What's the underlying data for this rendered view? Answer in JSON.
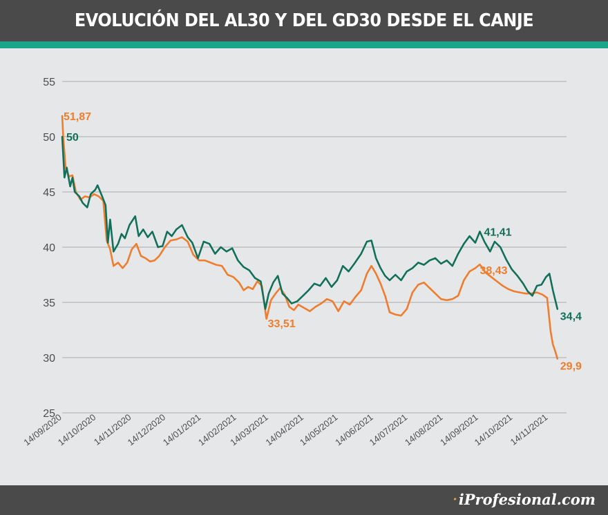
{
  "title": "EVOLUCIÓN DEL AL30 Y DEL GD30 DESDE EL CANJE",
  "brand": "iProfesional.com",
  "colors": {
    "header_bg": "#4a4a4a",
    "stripe": "#1aa58a",
    "background": "#e6e7e8",
    "gd30": "#12705a",
    "al30": "#ef7d2d",
    "grid": "#a9abad",
    "axis_text": "#4d4d4d"
  },
  "chart_data": {
    "type": "line",
    "ylim": [
      25,
      55
    ],
    "yticks": [
      25,
      30,
      35,
      40,
      45,
      50,
      55
    ],
    "grid": true,
    "x_range": [
      "2020-09-14",
      "2021-11-30"
    ],
    "x_tick_labels": [
      "14/09/2020",
      "14/10/2020",
      "14/11/2020",
      "14/12/2020",
      "14/01/2021",
      "14/02/2021",
      "14/03/2021",
      "14/04/2021",
      "14/05/2021",
      "14/06/2021",
      "14/07/2021",
      "14/08/2021",
      "14/09/2021",
      "14/10/2021",
      "14/11/2021"
    ],
    "series": [
      {
        "key": "gd30",
        "color": "#12705a",
        "points": [
          [
            "2020-09-14",
            50.0
          ],
          [
            "2020-09-16",
            46.3
          ],
          [
            "2020-09-18",
            47.2
          ],
          [
            "2020-09-21",
            45.5
          ],
          [
            "2020-09-23",
            46.3
          ],
          [
            "2020-09-25",
            45.0
          ],
          [
            "2020-09-29",
            44.6
          ],
          [
            "2020-10-02",
            44.0
          ],
          [
            "2020-10-06",
            43.6
          ],
          [
            "2020-10-09",
            44.8
          ],
          [
            "2020-10-13",
            45.2
          ],
          [
            "2020-10-15",
            45.6
          ],
          [
            "2020-10-19",
            44.6
          ],
          [
            "2020-10-22",
            43.8
          ],
          [
            "2020-10-24",
            40.4
          ],
          [
            "2020-10-26",
            42.5
          ],
          [
            "2020-10-29",
            39.6
          ],
          [
            "2020-11-02",
            40.3
          ],
          [
            "2020-11-05",
            41.2
          ],
          [
            "2020-11-08",
            40.8
          ],
          [
            "2020-11-12",
            42.0
          ],
          [
            "2020-11-17",
            42.8
          ],
          [
            "2020-11-20",
            41.0
          ],
          [
            "2020-11-24",
            41.6
          ],
          [
            "2020-11-28",
            40.9
          ],
          [
            "2020-12-02",
            41.4
          ],
          [
            "2020-12-07",
            40.0
          ],
          [
            "2020-12-11",
            40.1
          ],
          [
            "2020-12-15",
            41.4
          ],
          [
            "2020-12-19",
            41.0
          ],
          [
            "2020-12-23",
            41.6
          ],
          [
            "2020-12-28",
            42.0
          ],
          [
            "2021-01-02",
            40.9
          ],
          [
            "2021-01-06",
            40.4
          ],
          [
            "2021-01-11",
            39.0
          ],
          [
            "2021-01-16",
            40.5
          ],
          [
            "2021-01-21",
            40.3
          ],
          [
            "2021-01-26",
            39.4
          ],
          [
            "2021-01-31",
            40.0
          ],
          [
            "2021-02-05",
            39.6
          ],
          [
            "2021-02-10",
            39.9
          ],
          [
            "2021-02-15",
            38.8
          ],
          [
            "2021-02-20",
            38.2
          ],
          [
            "2021-02-25",
            37.9
          ],
          [
            "2021-03-02",
            37.2
          ],
          [
            "2021-03-07",
            36.9
          ],
          [
            "2021-03-11",
            34.4
          ],
          [
            "2021-03-14",
            35.8
          ],
          [
            "2021-03-18",
            36.8
          ],
          [
            "2021-03-22",
            37.4
          ],
          [
            "2021-03-26",
            35.8
          ],
          [
            "2021-03-30",
            35.4
          ],
          [
            "2021-04-03",
            34.9
          ],
          [
            "2021-04-08",
            35.1
          ],
          [
            "2021-04-13",
            35.6
          ],
          [
            "2021-04-18",
            36.1
          ],
          [
            "2021-04-23",
            36.7
          ],
          [
            "2021-04-28",
            36.5
          ],
          [
            "2021-05-03",
            37.2
          ],
          [
            "2021-05-08",
            36.4
          ],
          [
            "2021-05-13",
            37.0
          ],
          [
            "2021-05-18",
            38.3
          ],
          [
            "2021-05-23",
            37.8
          ],
          [
            "2021-05-28",
            38.5
          ],
          [
            "2021-06-03",
            39.4
          ],
          [
            "2021-06-08",
            40.5
          ],
          [
            "2021-06-12",
            40.6
          ],
          [
            "2021-06-16",
            39.0
          ],
          [
            "2021-06-20",
            38.1
          ],
          [
            "2021-06-24",
            37.4
          ],
          [
            "2021-06-28",
            37.0
          ],
          [
            "2021-07-03",
            37.5
          ],
          [
            "2021-07-08",
            37.0
          ],
          [
            "2021-07-13",
            37.8
          ],
          [
            "2021-07-18",
            38.1
          ],
          [
            "2021-07-23",
            38.6
          ],
          [
            "2021-07-28",
            38.4
          ],
          [
            "2021-08-02",
            38.8
          ],
          [
            "2021-08-07",
            39.0
          ],
          [
            "2021-08-12",
            38.5
          ],
          [
            "2021-08-17",
            38.8
          ],
          [
            "2021-08-22",
            38.3
          ],
          [
            "2021-08-27",
            39.4
          ],
          [
            "2021-09-01",
            40.3
          ],
          [
            "2021-09-06",
            41.0
          ],
          [
            "2021-09-11",
            40.4
          ],
          [
            "2021-09-15",
            41.41
          ],
          [
            "2021-09-19",
            40.5
          ],
          [
            "2021-09-24",
            39.6
          ],
          [
            "2021-09-28",
            40.5
          ],
          [
            "2021-10-03",
            40.0
          ],
          [
            "2021-10-08",
            38.9
          ],
          [
            "2021-10-13",
            38.0
          ],
          [
            "2021-10-18",
            37.4
          ],
          [
            "2021-10-23",
            36.7
          ],
          [
            "2021-10-27",
            36.0
          ],
          [
            "2021-10-31",
            35.6
          ],
          [
            "2021-11-04",
            36.5
          ],
          [
            "2021-11-08",
            36.6
          ],
          [
            "2021-11-12",
            37.3
          ],
          [
            "2021-11-15",
            37.6
          ],
          [
            "2021-11-18",
            36.1
          ],
          [
            "2021-11-22",
            34.4
          ]
        ],
        "annotations": [
          {
            "date": "2020-09-14",
            "value": 50.0,
            "label": "50"
          },
          {
            "date": "2021-09-15",
            "value": 41.41,
            "label": "41,41"
          },
          {
            "date": "2021-11-22",
            "value": 34.4,
            "label": "34,4"
          }
        ]
      },
      {
        "key": "al30",
        "color": "#ef7d2d",
        "points": [
          [
            "2020-09-14",
            51.87
          ],
          [
            "2020-09-15",
            49.8
          ],
          [
            "2020-09-17",
            47.2
          ],
          [
            "2020-09-20",
            46.4
          ],
          [
            "2020-09-23",
            46.5
          ],
          [
            "2020-09-26",
            45.0
          ],
          [
            "2020-09-30",
            44.3
          ],
          [
            "2020-10-04",
            44.6
          ],
          [
            "2020-10-08",
            44.5
          ],
          [
            "2020-10-12",
            44.8
          ],
          [
            "2020-10-16",
            44.6
          ],
          [
            "2020-10-20",
            44.2
          ],
          [
            "2020-10-23",
            40.6
          ],
          [
            "2020-10-26",
            39.8
          ],
          [
            "2020-10-29",
            38.3
          ],
          [
            "2020-11-02",
            38.6
          ],
          [
            "2020-11-06",
            38.1
          ],
          [
            "2020-11-10",
            38.6
          ],
          [
            "2020-11-14",
            39.8
          ],
          [
            "2020-11-18",
            40.3
          ],
          [
            "2020-11-22",
            39.2
          ],
          [
            "2020-11-26",
            39.0
          ],
          [
            "2020-11-30",
            38.7
          ],
          [
            "2020-12-04",
            38.8
          ],
          [
            "2020-12-08",
            39.2
          ],
          [
            "2020-12-13",
            40.0
          ],
          [
            "2020-12-18",
            40.6
          ],
          [
            "2020-12-23",
            40.7
          ],
          [
            "2020-12-28",
            40.9
          ],
          [
            "2021-01-02",
            40.5
          ],
          [
            "2021-01-07",
            39.3
          ],
          [
            "2021-01-12",
            38.8
          ],
          [
            "2021-01-17",
            38.8
          ],
          [
            "2021-01-22",
            38.6
          ],
          [
            "2021-01-27",
            38.4
          ],
          [
            "2021-02-01",
            38.3
          ],
          [
            "2021-02-06",
            37.5
          ],
          [
            "2021-02-11",
            37.3
          ],
          [
            "2021-02-16",
            36.8
          ],
          [
            "2021-02-20",
            36.1
          ],
          [
            "2021-02-24",
            36.4
          ],
          [
            "2021-02-28",
            36.2
          ],
          [
            "2021-03-04",
            36.9
          ],
          [
            "2021-03-08",
            36.5
          ],
          [
            "2021-03-12",
            33.51
          ],
          [
            "2021-03-16",
            35.2
          ],
          [
            "2021-03-20",
            35.8
          ],
          [
            "2021-03-24",
            36.3
          ],
          [
            "2021-03-28",
            35.7
          ],
          [
            "2021-04-01",
            34.6
          ],
          [
            "2021-04-05",
            34.3
          ],
          [
            "2021-04-09",
            34.8
          ],
          [
            "2021-04-14",
            34.5
          ],
          [
            "2021-04-19",
            34.2
          ],
          [
            "2021-04-24",
            34.6
          ],
          [
            "2021-04-29",
            34.9
          ],
          [
            "2021-05-04",
            35.3
          ],
          [
            "2021-05-09",
            35.1
          ],
          [
            "2021-05-14",
            34.2
          ],
          [
            "2021-05-19",
            35.1
          ],
          [
            "2021-05-24",
            34.8
          ],
          [
            "2021-05-29",
            35.5
          ],
          [
            "2021-06-03",
            36.1
          ],
          [
            "2021-06-08",
            37.6
          ],
          [
            "2021-06-12",
            38.3
          ],
          [
            "2021-06-16",
            37.6
          ],
          [
            "2021-06-20",
            36.7
          ],
          [
            "2021-06-24",
            35.6
          ],
          [
            "2021-06-28",
            34.1
          ],
          [
            "2021-07-03",
            33.9
          ],
          [
            "2021-07-08",
            33.8
          ],
          [
            "2021-07-13",
            34.4
          ],
          [
            "2021-07-18",
            35.9
          ],
          [
            "2021-07-23",
            36.6
          ],
          [
            "2021-07-28",
            36.8
          ],
          [
            "2021-08-02",
            36.3
          ],
          [
            "2021-08-07",
            35.8
          ],
          [
            "2021-08-12",
            35.3
          ],
          [
            "2021-08-17",
            35.2
          ],
          [
            "2021-08-22",
            35.3
          ],
          [
            "2021-08-27",
            35.6
          ],
          [
            "2021-09-01",
            37.0
          ],
          [
            "2021-09-06",
            37.8
          ],
          [
            "2021-09-11",
            38.1
          ],
          [
            "2021-09-15",
            38.43
          ],
          [
            "2021-09-20",
            37.7
          ],
          [
            "2021-09-25",
            37.3
          ],
          [
            "2021-09-30",
            36.9
          ],
          [
            "2021-10-05",
            36.5
          ],
          [
            "2021-10-10",
            36.2
          ],
          [
            "2021-10-15",
            36.0
          ],
          [
            "2021-10-20",
            35.9
          ],
          [
            "2021-10-25",
            35.8
          ],
          [
            "2021-10-30",
            35.8
          ],
          [
            "2021-11-04",
            35.9
          ],
          [
            "2021-11-09",
            35.7
          ],
          [
            "2021-11-13",
            35.4
          ],
          [
            "2021-11-16",
            32.4
          ],
          [
            "2021-11-18",
            31.2
          ],
          [
            "2021-11-20",
            30.6
          ],
          [
            "2021-11-22",
            29.9
          ]
        ],
        "annotations": [
          {
            "date": "2020-09-14",
            "value": 51.87,
            "label": "51,87"
          },
          {
            "date": "2021-03-12",
            "value": 33.51,
            "label": "33,51"
          },
          {
            "date": "2021-09-15",
            "value": 38.43,
            "label": "38,43"
          },
          {
            "date": "2021-11-22",
            "value": 29.9,
            "label": "29,9"
          }
        ]
      }
    ]
  }
}
